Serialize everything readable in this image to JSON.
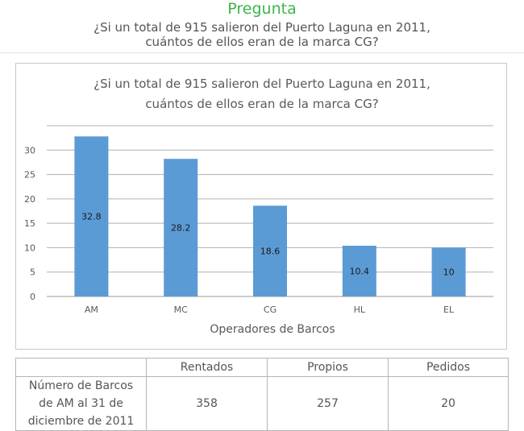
{
  "header": {
    "label": "Pregunta",
    "question_line1": "¿Si un total de 915 salieron del Puerto Laguna en 2011,",
    "question_line2": "cuántos de ellos eran de la marca CG?"
  },
  "chart_data": {
    "type": "bar",
    "title_line1": "¿Si un total de 915 salieron del Puerto Laguna en 2011,",
    "title_line2": "cuántos de ellos eran de la marca CG?",
    "categories": [
      "AM",
      "MC",
      "CG",
      "HL",
      "EL"
    ],
    "values": [
      32.8,
      28.2,
      18.6,
      10.4,
      10
    ],
    "data_labels": [
      "32.8",
      "28.2",
      "18.6",
      "10.4",
      "10"
    ],
    "xlabel": "Operadores de Barcos",
    "ylabel": "",
    "ylim": [
      0,
      35
    ],
    "yticks": [
      0,
      5,
      10,
      15,
      20,
      25,
      30
    ],
    "grid": true,
    "bar_color": "#5b9bd5"
  },
  "table": {
    "headers": [
      "",
      "Rentados",
      "Propios",
      "Pedidos"
    ],
    "row_label_lines": [
      "Número de Barcos",
      "de AM al 31 de",
      "diciembre de 2011"
    ],
    "values": [
      "358",
      "257",
      "20"
    ]
  }
}
